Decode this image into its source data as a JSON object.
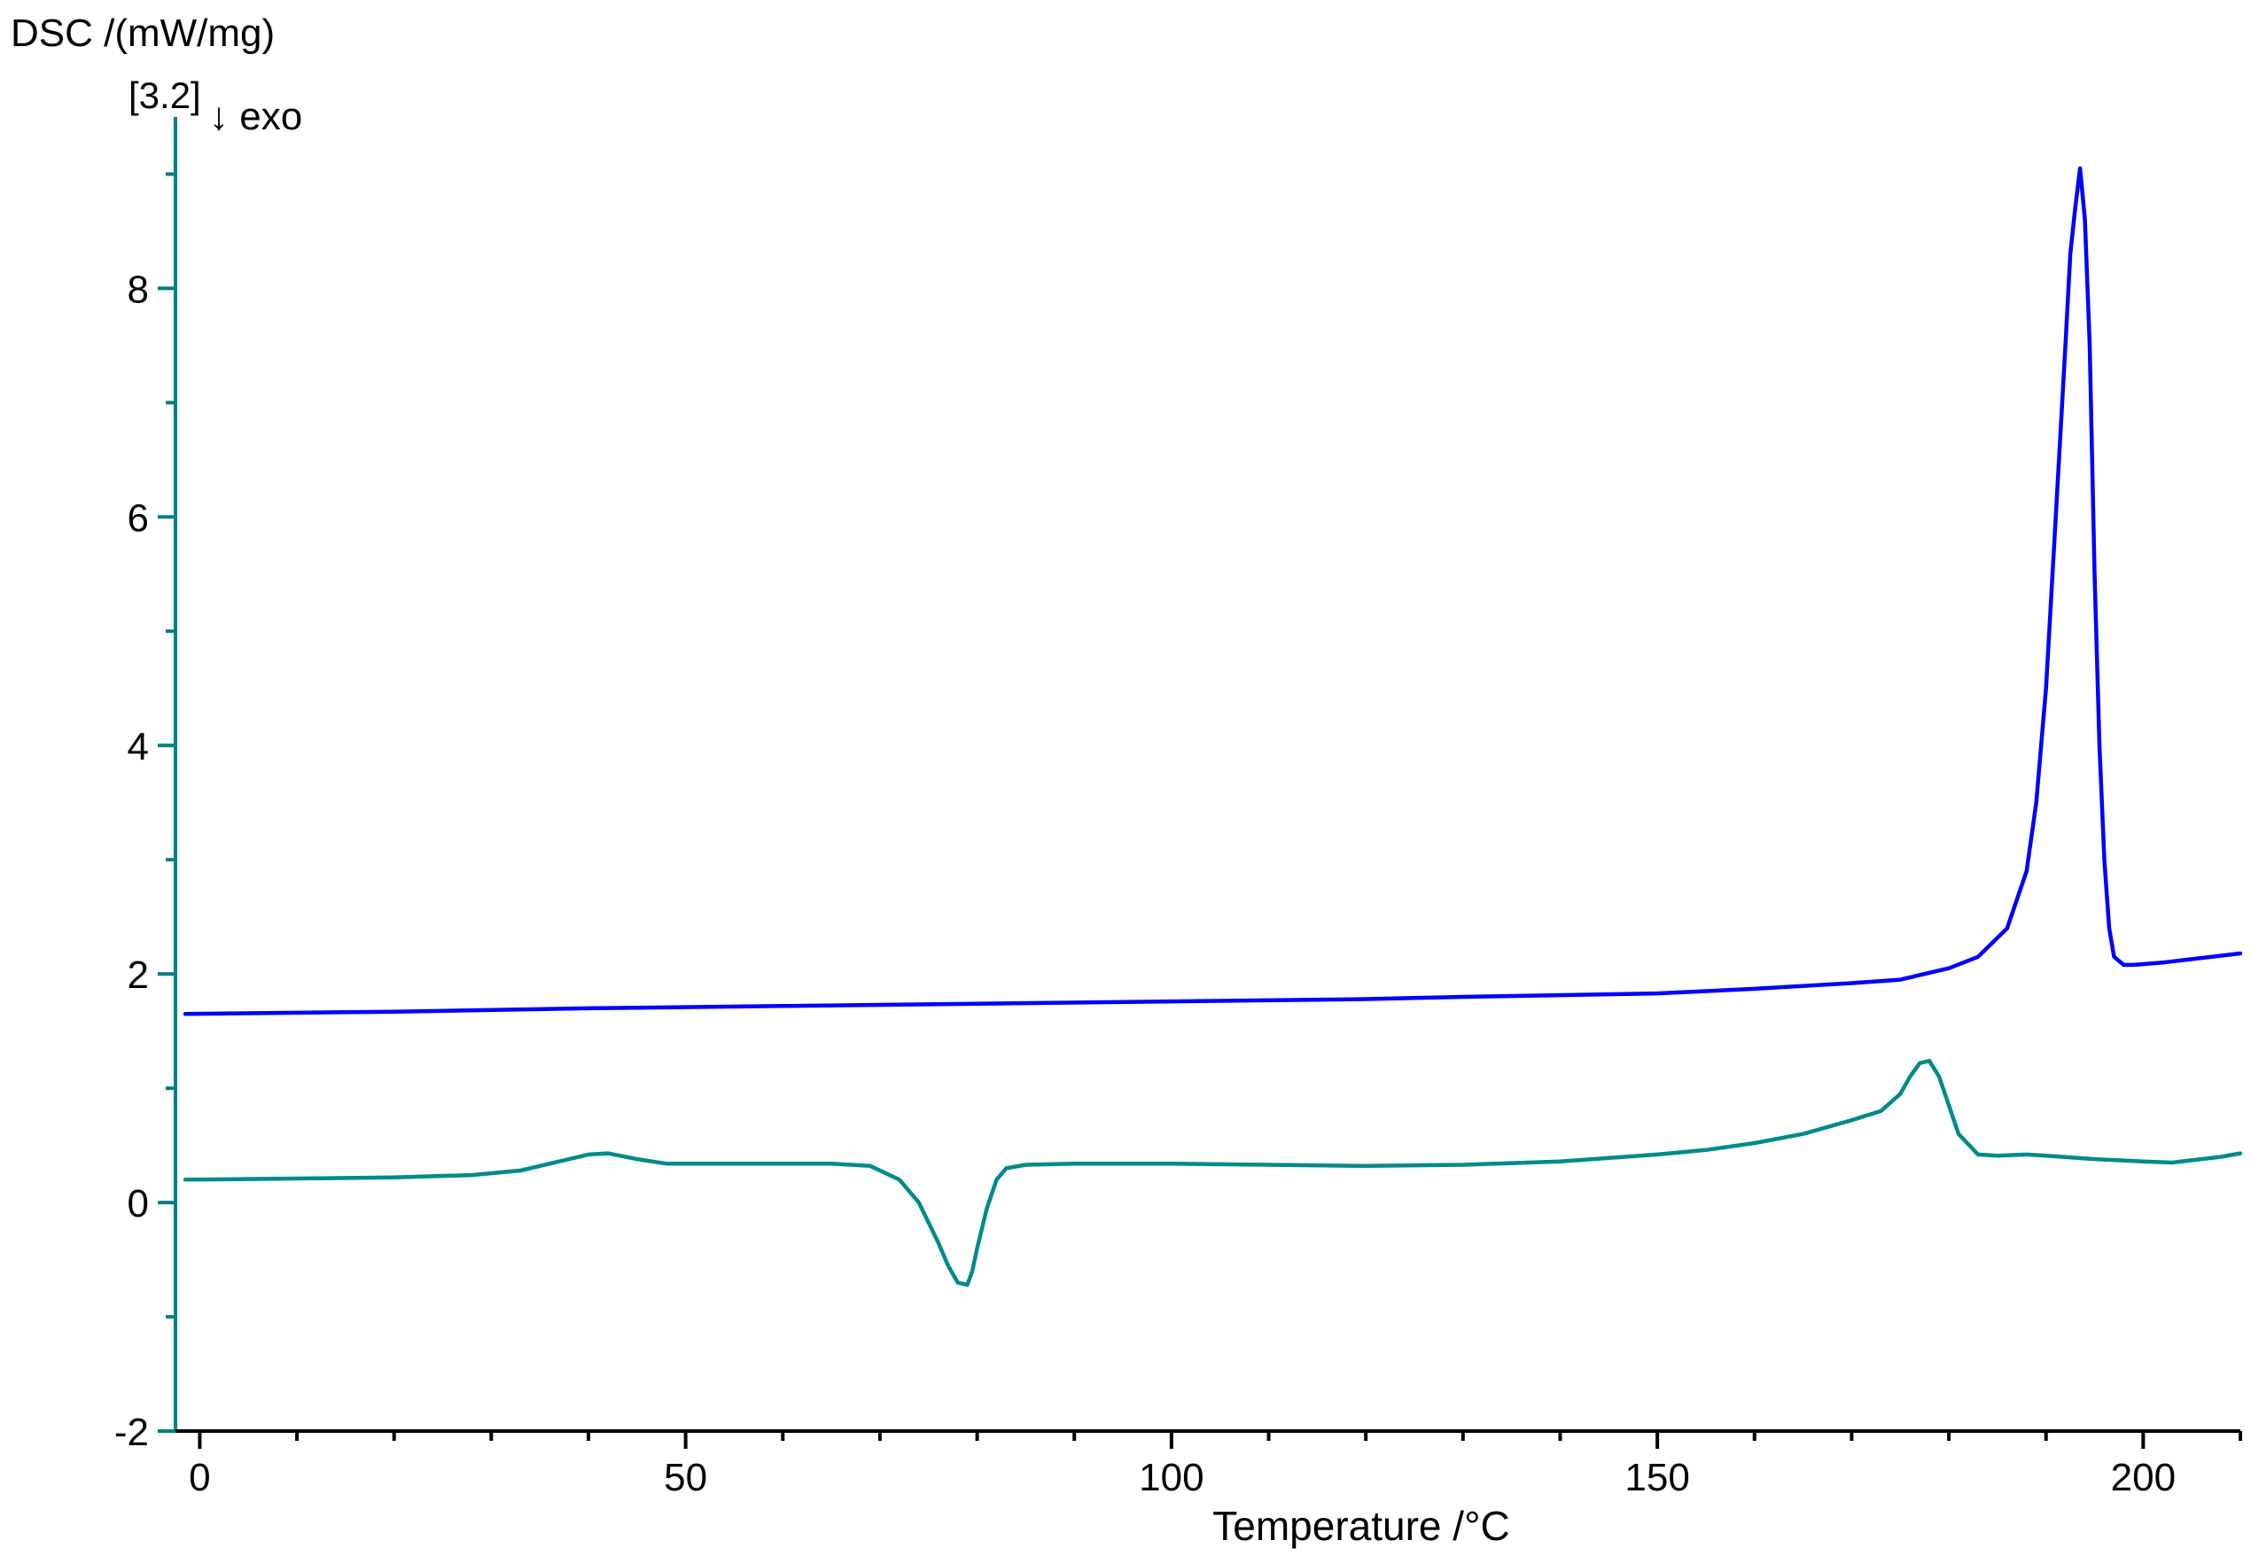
{
  "chart_data": {
    "type": "line",
    "title": "",
    "ylabel": "DSC /(mW/mg)",
    "xlabel": "Temperature /°C",
    "curve_label": "[3.2]",
    "exo_label": "↓ exo",
    "xlim": [
      -2.5,
      210
    ],
    "ylim": [
      -2,
      9.5
    ],
    "x_ticks": [
      0,
      50,
      100,
      150,
      200
    ],
    "y_ticks": [
      -2,
      0,
      2,
      4,
      6,
      8
    ],
    "grid": false,
    "axis_color": "#008080",
    "series": [
      {
        "color": "#0000ff",
        "points": [
          [
            -1.5,
            1.65
          ],
          [
            20,
            1.67
          ],
          [
            40,
            1.7
          ],
          [
            60,
            1.72
          ],
          [
            80,
            1.74
          ],
          [
            100,
            1.76
          ],
          [
            120,
            1.78
          ],
          [
            130,
            1.8
          ],
          [
            150,
            1.83
          ],
          [
            160,
            1.87
          ],
          [
            170,
            1.92
          ],
          [
            175,
            1.95
          ],
          [
            180,
            2.05
          ],
          [
            183,
            2.15
          ],
          [
            186,
            2.4
          ],
          [
            188,
            2.9
          ],
          [
            189,
            3.5
          ],
          [
            190,
            4.5
          ],
          [
            191,
            6.0
          ],
          [
            192,
            7.5
          ],
          [
            192.5,
            8.3
          ],
          [
            193,
            8.7
          ],
          [
            193.5,
            9.05
          ],
          [
            194,
            8.6
          ],
          [
            194.5,
            7.5
          ],
          [
            195,
            5.5
          ],
          [
            195.5,
            4.0
          ],
          [
            196,
            3.0
          ],
          [
            196.5,
            2.4
          ],
          [
            197,
            2.15
          ],
          [
            198,
            2.08
          ],
          [
            199,
            2.08
          ],
          [
            202,
            2.1
          ],
          [
            205,
            2.13
          ],
          [
            210,
            2.18
          ]
        ]
      },
      {
        "color": "#008b8b",
        "points": [
          [
            -1.5,
            0.2
          ],
          [
            10,
            0.21
          ],
          [
            20,
            0.22
          ],
          [
            28,
            0.24
          ],
          [
            33,
            0.28
          ],
          [
            37,
            0.36
          ],
          [
            40,
            0.42
          ],
          [
            42,
            0.43
          ],
          [
            45,
            0.38
          ],
          [
            48,
            0.34
          ],
          [
            55,
            0.34
          ],
          [
            65,
            0.34
          ],
          [
            69,
            0.32
          ],
          [
            72,
            0.2
          ],
          [
            74,
            0.0
          ],
          [
            76,
            -0.35
          ],
          [
            77,
            -0.55
          ],
          [
            78,
            -0.7
          ],
          [
            79,
            -0.72
          ],
          [
            79.5,
            -0.6
          ],
          [
            80,
            -0.4
          ],
          [
            81,
            -0.05
          ],
          [
            82,
            0.2
          ],
          [
            83,
            0.3
          ],
          [
            85,
            0.33
          ],
          [
            90,
            0.34
          ],
          [
            100,
            0.34
          ],
          [
            110,
            0.33
          ],
          [
            120,
            0.32
          ],
          [
            130,
            0.33
          ],
          [
            140,
            0.36
          ],
          [
            150,
            0.42
          ],
          [
            155,
            0.46
          ],
          [
            160,
            0.52
          ],
          [
            165,
            0.6
          ],
          [
            170,
            0.72
          ],
          [
            173,
            0.8
          ],
          [
            175,
            0.95
          ],
          [
            176,
            1.1
          ],
          [
            177,
            1.22
          ],
          [
            178,
            1.24
          ],
          [
            179,
            1.1
          ],
          [
            180,
            0.85
          ],
          [
            181,
            0.6
          ],
          [
            183,
            0.42
          ],
          [
            185,
            0.41
          ],
          [
            188,
            0.42
          ],
          [
            190,
            0.41
          ],
          [
            195,
            0.38
          ],
          [
            200,
            0.36
          ],
          [
            203,
            0.35
          ],
          [
            205,
            0.37
          ],
          [
            208,
            0.4
          ],
          [
            210,
            0.43
          ]
        ]
      }
    ]
  }
}
